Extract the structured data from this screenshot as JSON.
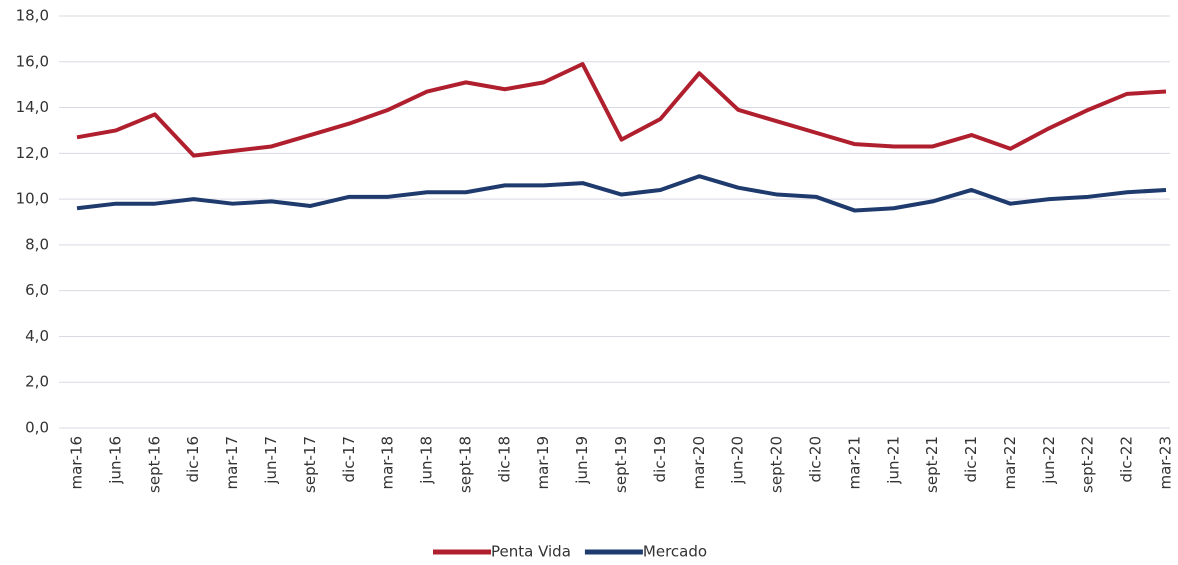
{
  "chart_data": {
    "type": "line",
    "categories": [
      "mar-16",
      "jun-16",
      "sept-16",
      "dic-16",
      "mar-17",
      "jun-17",
      "sept-17",
      "dic-17",
      "mar-18",
      "jun-18",
      "sept-18",
      "dic-18",
      "mar-19",
      "jun-19",
      "sept-19",
      "dic-19",
      "mar-20",
      "jun-20",
      "sept-20",
      "dic-20",
      "mar-21",
      "jun-21",
      "sept-21",
      "dic-21",
      "mar-22",
      "jun-22",
      "sept-22",
      "dic-22",
      "mar-23"
    ],
    "series": [
      {
        "name": "Penta Vida",
        "color": "#b01f2e",
        "values": [
          12.7,
          13.0,
          13.7,
          11.9,
          12.1,
          12.3,
          12.8,
          13.3,
          13.9,
          14.7,
          15.1,
          14.8,
          15.1,
          15.9,
          12.6,
          13.5,
          15.5,
          13.9,
          13.4,
          12.9,
          12.4,
          12.3,
          12.3,
          12.8,
          12.2,
          13.1,
          13.9,
          14.6,
          14.7
        ]
      },
      {
        "name": "Mercado",
        "color": "#1f3b6e",
        "values": [
          9.6,
          9.8,
          9.8,
          10.0,
          9.8,
          9.9,
          9.7,
          10.1,
          10.1,
          10.3,
          10.3,
          10.6,
          10.6,
          10.7,
          10.2,
          10.4,
          11.0,
          10.5,
          10.2,
          10.1,
          9.5,
          9.6,
          9.9,
          10.4,
          9.8,
          10.0,
          10.1,
          10.3,
          10.4
        ]
      }
    ],
    "ylim": [
      0,
      18
    ],
    "yticks": [
      {
        "value": 0,
        "label": "0,0"
      },
      {
        "value": 2,
        "label": "2,0"
      },
      {
        "value": 4,
        "label": "4,0"
      },
      {
        "value": 6,
        "label": "6,0"
      },
      {
        "value": 8,
        "label": "8,0"
      },
      {
        "value": 10,
        "label": "10,0"
      },
      {
        "value": 12,
        "label": "12,0"
      },
      {
        "value": 14,
        "label": "14,0"
      },
      {
        "value": 16,
        "label": "16,0"
      },
      {
        "value": 18,
        "label": "18,0"
      }
    ],
    "grid": true,
    "legend": "bottom"
  }
}
